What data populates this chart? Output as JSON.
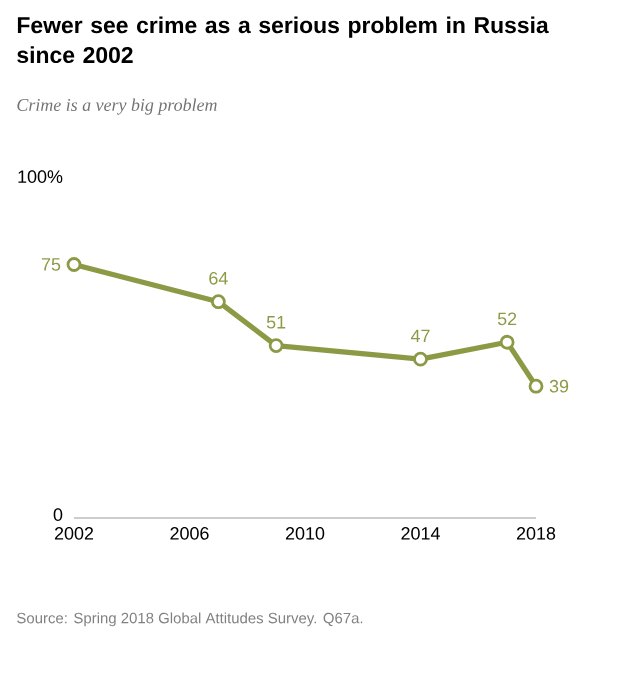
{
  "chart_data": {
    "type": "line",
    "title": "Fewer see crime as a serious problem in Russia since 2002",
    "subtitle": "Crime is a very big problem",
    "x": [
      2002,
      2007,
      2009,
      2014,
      2017,
      2018
    ],
    "values": [
      75,
      64,
      51,
      47,
      52,
      39
    ],
    "color": "#8c9a45",
    "xlim": [
      2002,
      2018
    ],
    "xticks": [
      2002,
      2006,
      2010,
      2014,
      2018
    ],
    "ylim": [
      0,
      100
    ],
    "yticks": [
      0,
      {
        "value": 100,
        "label": "100%"
      }
    ],
    "marker": "circle",
    "line_style": "solid",
    "data_labels": true,
    "annotations": [
      "Source: Spring 2018 Global Attitudes Survey. Q67a."
    ]
  }
}
